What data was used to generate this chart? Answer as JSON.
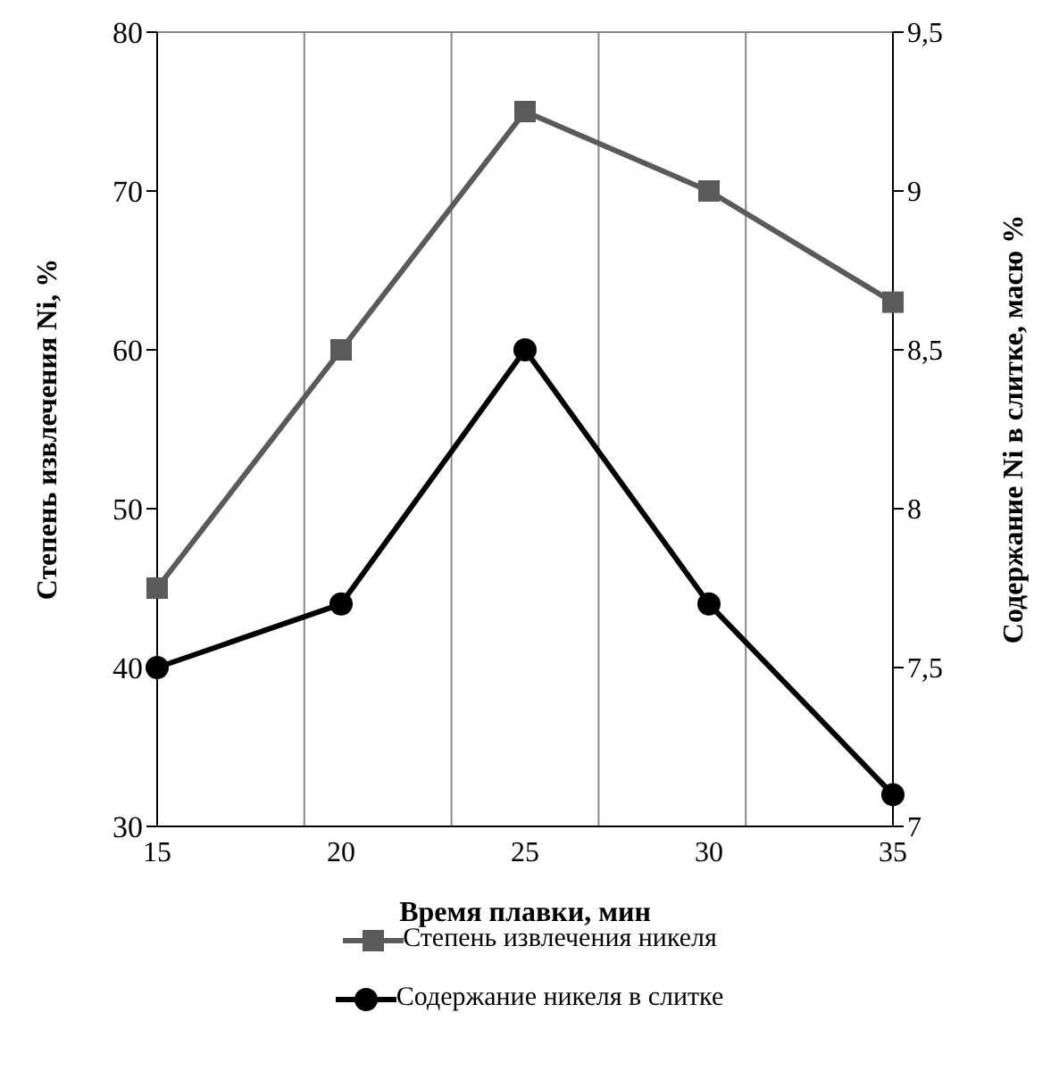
{
  "chart_data": {
    "type": "line",
    "xlabel": "Время плавки, мин",
    "ylabel": "Степень извлечения Ni, %",
    "y2label": "Содержание Ni в слитке, масю %",
    "categories": [
      "15",
      "20",
      "25",
      "30",
      "35"
    ],
    "series": [
      {
        "name": "Степень извлечения никеля",
        "color": "#5a5a5a",
        "marker": "square",
        "values": [
          45,
          60,
          75,
          70,
          63
        ]
      },
      {
        "name": "Содержание никеля в слитке",
        "color": "#000000",
        "marker": "circle",
        "axis": "y2",
        "values": [
          7.5,
          7.7,
          8.5,
          7.7,
          7.1
        ]
      }
    ],
    "ylim": [
      30,
      80
    ],
    "yticks": [
      30,
      40,
      50,
      60,
      70,
      80
    ],
    "y2lim": [
      7,
      9.5
    ],
    "y2ticks": [
      7,
      {
        "value": 7.5,
        "label": "7,5"
      },
      8,
      {
        "value": 8.5,
        "label": "8,5"
      },
      9,
      {
        "value": 9.5,
        "label": "9,5"
      }
    ],
    "grid": true,
    "legend": "bottom",
    "line_style": "solid"
  }
}
